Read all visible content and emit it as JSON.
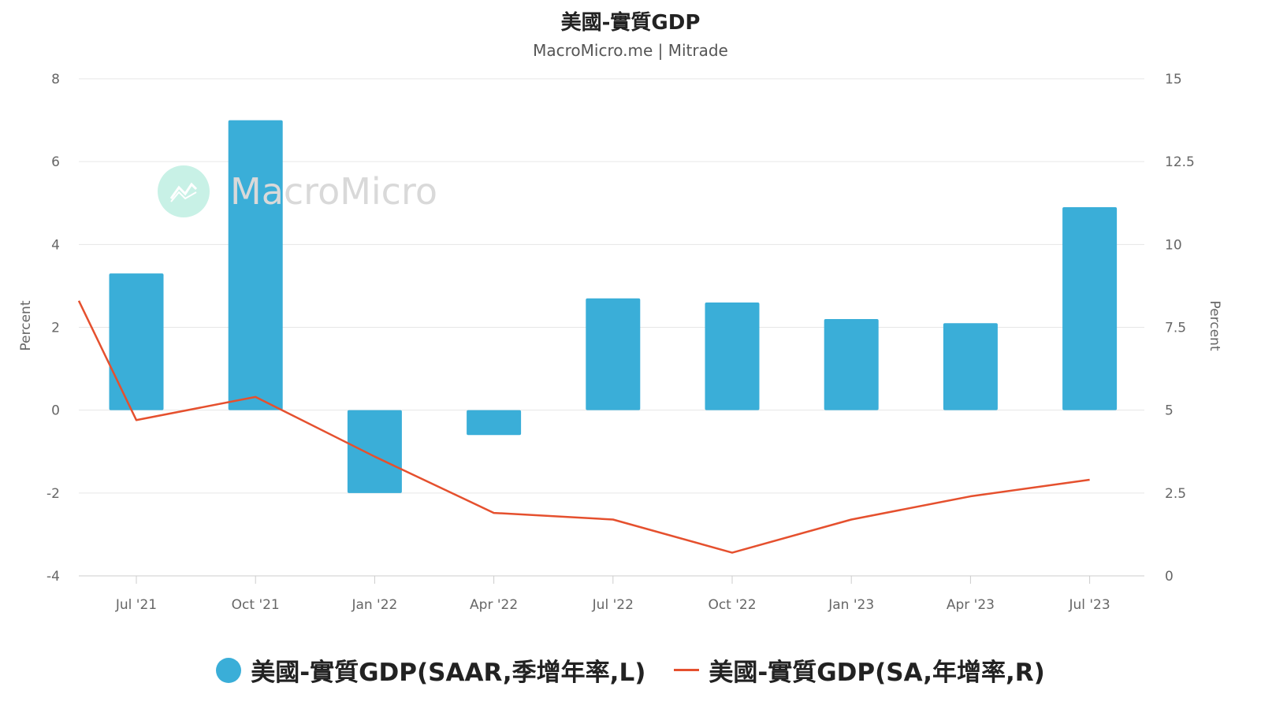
{
  "header": {
    "title": "美國-實質GDP",
    "subtitle": "MacroMicro.me | Mitrade"
  },
  "watermark": {
    "text": "MacroMicro"
  },
  "colors": {
    "bar": "#3aaed8",
    "line": "#e5502e",
    "grid": "#e6e6e6",
    "axis_text": "#666666"
  },
  "chart_data": {
    "type": "bar",
    "categories": [
      "Jul '21",
      "Oct '21",
      "Jan '22",
      "Apr '22",
      "Jul '22",
      "Oct '22",
      "Jan '23",
      "Apr '23",
      "Jul '23"
    ],
    "series": [
      {
        "name": "美國-實質GDP(SAAR,季增年率,L)",
        "type": "bar",
        "axis": "left",
        "values": [
          3.3,
          7.0,
          -2.0,
          -0.6,
          2.7,
          2.6,
          2.2,
          2.1,
          4.9
        ]
      },
      {
        "name": "美國-實質GDP(SA,年增率,R)",
        "type": "line",
        "axis": "right",
        "values": [
          4.7,
          5.4,
          3.6,
          1.9,
          1.7,
          0.7,
          1.7,
          2.4,
          2.9
        ],
        "leading_value": 8.3
      }
    ],
    "left_axis": {
      "label": "Percent",
      "ylim": [
        -4,
        8
      ],
      "ticks": [
        "8",
        "6",
        "4",
        "2",
        "0",
        "-2",
        "-4"
      ]
    },
    "right_axis": {
      "label": "Percent",
      "ylim": [
        0,
        15
      ],
      "ticks": [
        "15",
        "12.5",
        "10",
        "7.5",
        "5",
        "2.5",
        "0"
      ]
    },
    "grid": true,
    "legend": "bottom-center"
  }
}
